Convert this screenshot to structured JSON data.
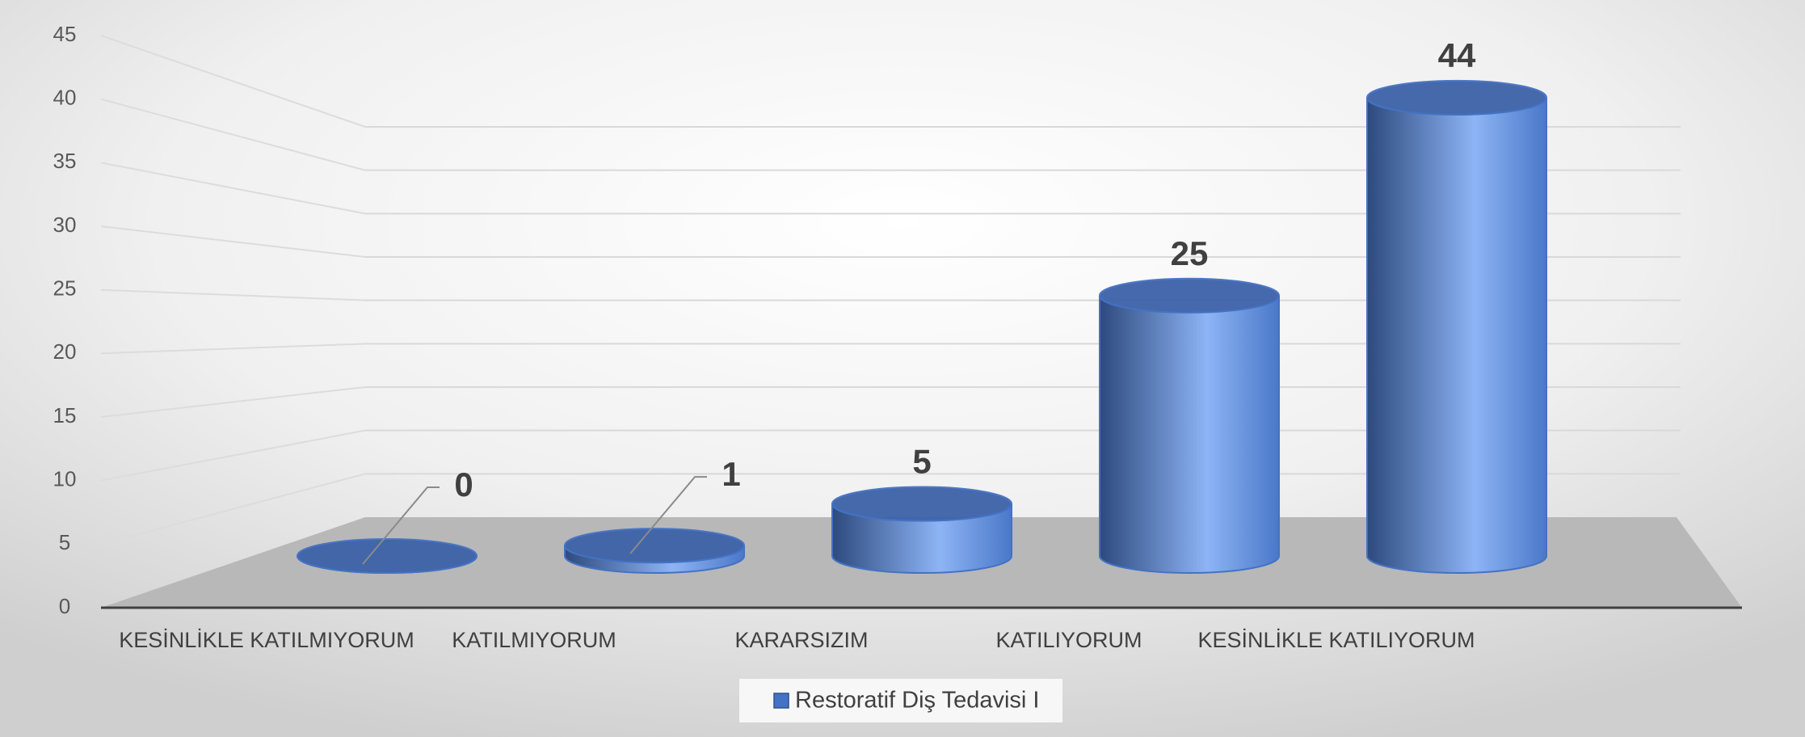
{
  "chart_data": {
    "type": "bar3d-cylinder",
    "categories": [
      "KESİNLİKLE KATILMIYORUM",
      "KATILMIYORUM",
      "KARARSIZIM",
      "KATILIYORUM",
      "KESİNLİKLE KATILIYORUM"
    ],
    "series": [
      {
        "name": "Restoratif Diş Tedavisi I",
        "color": "#4472c4",
        "values": [
          0,
          1,
          5,
          25,
          44
        ]
      }
    ],
    "ylim": [
      0,
      45
    ],
    "yticks": [
      0,
      5,
      10,
      15,
      20,
      25,
      30,
      35,
      40,
      45
    ],
    "grid": true,
    "legend": "bottom"
  }
}
